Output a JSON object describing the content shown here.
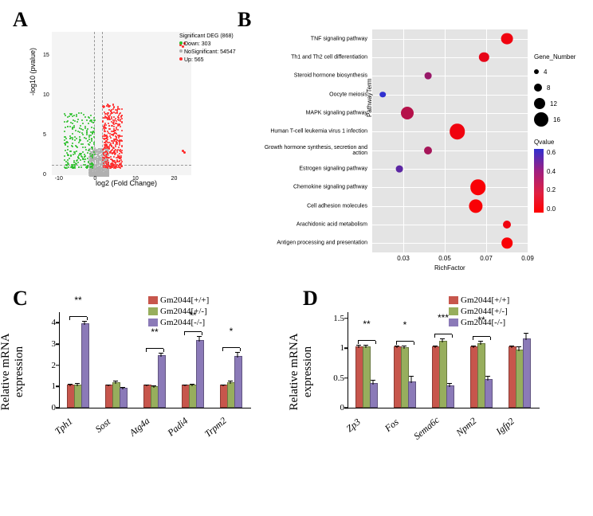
{
  "panel_labels": {
    "A": "A",
    "B": "B",
    "C": "C",
    "D": "D"
  },
  "colors": {
    "down": "#2bbf2b",
    "nosig": "#b0b0b0",
    "up": "#ff2a2a",
    "grid": "#e4e4e4",
    "bar_red": "#c7564c",
    "bar_green": "#97ae5d",
    "bar_purple": "#8b7ab8",
    "qvalue_blue": "#3030d0",
    "qvalue_mid": "#b02070",
    "qvalue_red": "#ff0000"
  },
  "panelA": {
    "title": "Significant DEG (868)",
    "legend": [
      {
        "label": "Down: 303",
        "color": "#2bbf2b"
      },
      {
        "label": "NoSignificant: 54547",
        "color": "#b0b0b0"
      },
      {
        "label": "Up: 565",
        "color": "#ff2a2a"
      }
    ],
    "xlabel": "log2 (Fold Change)",
    "ylabel": "-log10 (pvalue)",
    "xlim": [
      -12,
      24
    ],
    "ylim": [
      0,
      18
    ],
    "fc_thresh": [
      -1,
      1
    ]
  },
  "panelB": {
    "yaxis_label": "PathwayTerm",
    "xaxis_label": "RichFactor",
    "xlim": [
      0.015,
      0.09
    ],
    "xticks": [
      0.03,
      0.05,
      0.07,
      0.09
    ],
    "legends": {
      "size_title": "Gene_Number",
      "sizes": [
        {
          "label": "4",
          "r": 3
        },
        {
          "label": "8",
          "r": 5
        },
        {
          "label": "12",
          "r": 7
        },
        {
          "label": "16",
          "r": 9
        }
      ],
      "color_title": "Qvalue",
      "cticks": [
        "0.6",
        "0.4",
        "0.2",
        "0.0"
      ]
    },
    "pathways": [
      {
        "label": "TNF signaling pathway",
        "rich": 0.08,
        "gene": 9,
        "q": 0.05
      },
      {
        "label": "Th1 and Th2 cell differentiation",
        "rich": 0.069,
        "gene": 7,
        "q": 0.08
      },
      {
        "label": "Steroid hormone biosynthesis",
        "rich": 0.042,
        "gene": 4,
        "q": 0.35
      },
      {
        "label": "Oocyte meiosis",
        "rich": 0.02,
        "gene": 3,
        "q": 0.7
      },
      {
        "label": "MAPK signaling pathway",
        "rich": 0.032,
        "gene": 10,
        "q": 0.25
      },
      {
        "label": "Human T-cell leukemia virus 1 infection",
        "rich": 0.056,
        "gene": 13,
        "q": 0.05
      },
      {
        "label": "Growth hormone synthesis, secretion and action",
        "rich": 0.042,
        "gene": 5,
        "q": 0.3
      },
      {
        "label": "Estrogen signaling pathway",
        "rich": 0.028,
        "gene": 4,
        "q": 0.55
      },
      {
        "label": "Chemokine signaling pathway",
        "rich": 0.066,
        "gene": 13,
        "q": 0.02
      },
      {
        "label": "Cell adhesion molecules",
        "rich": 0.065,
        "gene": 11,
        "q": 0.02
      },
      {
        "label": "Arachidonic acid metabolism",
        "rich": 0.08,
        "gene": 5,
        "q": 0.05
      },
      {
        "label": "Antigen processing and presentation",
        "rich": 0.08,
        "gene": 8,
        "q": 0.02
      }
    ]
  },
  "panelC": {
    "ylabel": "Relative mRNA\nexpression",
    "ymax": 4.5,
    "yticks": [
      0,
      1,
      2,
      3,
      4
    ],
    "legend": [
      {
        "label": "Gm2044[+/+]",
        "color": "#c7564c"
      },
      {
        "label": "Gm2044[+/-]",
        "color": "#97ae5d"
      },
      {
        "label": "Gm2044[-/-]",
        "color": "#8b7ab8"
      }
    ],
    "genes": [
      {
        "name": "Tph1",
        "vals": [
          1.0,
          1.03,
          3.9
        ],
        "errs": [
          0.07,
          0.1,
          0.15
        ],
        "sig": "**"
      },
      {
        "name": "Sost",
        "vals": [
          1.0,
          1.12,
          0.85
        ],
        "errs": [
          0.06,
          0.12,
          0.1
        ],
        "sig": null
      },
      {
        "name": "Atg4a",
        "vals": [
          1.0,
          0.95,
          2.4
        ],
        "errs": [
          0.05,
          0.07,
          0.15
        ],
        "sig": "**"
      },
      {
        "name": "Padi4",
        "vals": [
          1.0,
          1.0,
          3.12
        ],
        "errs": [
          0.05,
          0.07,
          0.2
        ],
        "sig": "**"
      },
      {
        "name": "Trpm2",
        "vals": [
          1.0,
          1.12,
          2.35
        ],
        "errs": [
          0.05,
          0.12,
          0.22
        ],
        "sig": "*"
      }
    ]
  },
  "panelD": {
    "ylabel": "Relative mRNA\nexpression",
    "ymax": 1.6,
    "yticks": [
      0,
      0.5,
      1.0,
      1.5
    ],
    "legend": [
      {
        "label": "Gm2044[+/+]",
        "color": "#c7564c"
      },
      {
        "label": "Gm2044[+/-]",
        "color": "#97ae5d"
      },
      {
        "label": "Gm2044[-/-]",
        "color": "#8b7ab8"
      }
    ],
    "genes": [
      {
        "name": "Zp3",
        "vals": [
          1.0,
          1.0,
          0.39
        ],
        "errs": [
          0.04,
          0.04,
          0.07
        ],
        "sig": "**"
      },
      {
        "name": "Fos",
        "vals": [
          1.0,
          0.99,
          0.41
        ],
        "errs": [
          0.03,
          0.04,
          0.11
        ],
        "sig": "*"
      },
      {
        "name": "Sema6c",
        "vals": [
          1.0,
          1.1,
          0.35
        ],
        "errs": [
          0.03,
          0.05,
          0.05
        ],
        "sig": "***"
      },
      {
        "name": "Npm2",
        "vals": [
          1.0,
          1.06,
          0.45
        ],
        "errs": [
          0.03,
          0.05,
          0.07
        ],
        "sig": "**"
      },
      {
        "name": "Igfp2",
        "vals": [
          1.0,
          0.95,
          1.14
        ],
        "errs": [
          0.03,
          0.06,
          0.1
        ],
        "sig": null
      }
    ]
  }
}
